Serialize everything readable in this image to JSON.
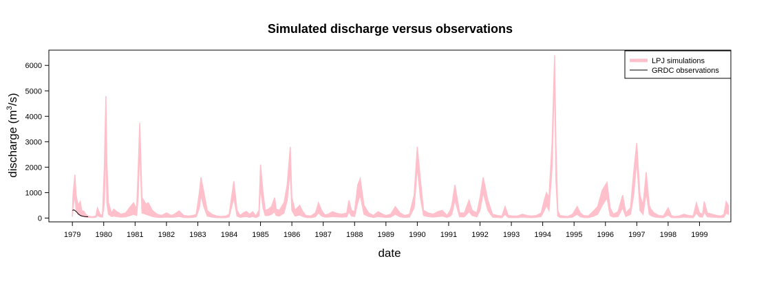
{
  "chart_data": {
    "type": "area",
    "title": "Simulated discharge versus observations",
    "xlabel": "date",
    "ylabel": {
      "prefix": "discharge (m",
      "superscript": "3",
      "suffix": "/s)"
    },
    "ylim": [
      -150,
      6600
    ],
    "xlim": [
      1978.25,
      2000.0
    ],
    "y_ticks": [
      0,
      1000,
      2000,
      3000,
      4000,
      5000,
      6000
    ],
    "x_ticks": [
      "1979",
      "1980",
      "1981",
      "1982",
      "1983",
      "1984",
      "1985",
      "1986",
      "1987",
      "1988",
      "1989",
      "1990",
      "1991",
      "1992",
      "1993",
      "1994",
      "1995",
      "1996",
      "1997",
      "1998",
      "1999"
    ],
    "legend_position": "top-right",
    "grid": false,
    "series": [
      {
        "name": "LPJ simulations",
        "color": "#ffc0cb",
        "kind": "band",
        "x": [
          1979.0,
          1979.02,
          1979.08,
          1979.12,
          1979.18,
          1979.25,
          1979.3,
          1979.38,
          1979.42,
          1979.5,
          1979.58,
          1979.65,
          1979.75,
          1979.8,
          1979.88,
          1979.96,
          1980.02,
          1980.07,
          1980.1,
          1980.15,
          1980.25,
          1980.32,
          1980.42,
          1980.55,
          1980.7,
          1980.85,
          1980.95,
          1981.05,
          1981.1,
          1981.15,
          1981.22,
          1981.35,
          1981.42,
          1981.55,
          1981.7,
          1981.85,
          1982.0,
          1982.15,
          1982.25,
          1982.4,
          1982.55,
          1982.7,
          1982.85,
          1982.95,
          1983.05,
          1983.1,
          1983.18,
          1983.3,
          1983.45,
          1983.6,
          1983.75,
          1983.9,
          1984.0,
          1984.15,
          1984.25,
          1984.35,
          1984.45,
          1984.55,
          1984.65,
          1984.75,
          1984.85,
          1984.95,
          1985.0,
          1985.08,
          1985.15,
          1985.25,
          1985.35,
          1985.45,
          1985.5,
          1985.6,
          1985.75,
          1985.85,
          1985.95,
          1986.0,
          1986.1,
          1986.25,
          1986.35,
          1986.45,
          1986.6,
          1986.75,
          1986.85,
          1986.95,
          1987.05,
          1987.15,
          1987.3,
          1987.45,
          1987.6,
          1987.75,
          1987.82,
          1987.9,
          1988.0,
          1988.1,
          1988.18,
          1988.3,
          1988.45,
          1988.6,
          1988.75,
          1988.9,
          1989.0,
          1989.15,
          1989.3,
          1989.45,
          1989.6,
          1989.75,
          1989.9,
          1990.0,
          1990.1,
          1990.2,
          1990.35,
          1990.5,
          1990.65,
          1990.8,
          1990.95,
          1991.05,
          1991.1,
          1991.2,
          1991.35,
          1991.5,
          1991.65,
          1991.75,
          1991.9,
          1992.0,
          1992.1,
          1992.25,
          1992.4,
          1992.55,
          1992.7,
          1992.8,
          1992.9,
          1993.05,
          1993.2,
          1993.35,
          1993.5,
          1993.65,
          1993.8,
          1993.95,
          1994.05,
          1994.12,
          1994.2,
          1994.3,
          1994.38,
          1994.42,
          1994.48,
          1994.55,
          1994.65,
          1994.8,
          1994.95,
          1995.1,
          1995.2,
          1995.3,
          1995.45,
          1995.6,
          1995.75,
          1995.9,
          1996.05,
          1996.15,
          1996.25,
          1996.4,
          1996.55,
          1996.65,
          1996.8,
          1996.9,
          1997.0,
          1997.1,
          1997.2,
          1997.3,
          1997.4,
          1997.45,
          1997.55,
          1997.7,
          1997.85,
          1998.0,
          1998.1,
          1998.2,
          1998.35,
          1998.5,
          1998.65,
          1998.8,
          1998.9,
          1999.0,
          1999.1,
          1999.15,
          1999.25,
          1999.4,
          1999.55,
          1999.7,
          1999.78,
          1999.85,
          1999.92
        ],
        "upper": [
          200,
          900,
          1700,
          900,
          500,
          650,
          300,
          250,
          150,
          80,
          60,
          50,
          80,
          400,
          150,
          100,
          2000,
          4800,
          2200,
          600,
          200,
          350,
          250,
          150,
          200,
          450,
          600,
          350,
          2000,
          3750,
          800,
          550,
          600,
          300,
          150,
          100,
          200,
          100,
          150,
          280,
          100,
          80,
          100,
          150,
          1000,
          1600,
          1100,
          300,
          150,
          80,
          60,
          80,
          150,
          1450,
          300,
          100,
          200,
          260,
          150,
          250,
          80,
          300,
          2100,
          1000,
          300,
          350,
          450,
          800,
          350,
          300,
          600,
          1300,
          2800,
          800,
          300,
          500,
          250,
          100,
          80,
          200,
          600,
          300,
          120,
          150,
          250,
          180,
          150,
          200,
          700,
          300,
          250,
          1300,
          1550,
          500,
          200,
          100,
          250,
          150,
          100,
          150,
          450,
          200,
          100,
          150,
          900,
          2800,
          1500,
          300,
          200,
          150,
          250,
          300,
          100,
          300,
          500,
          1300,
          200,
          200,
          700,
          300,
          200,
          800,
          1600,
          700,
          150,
          100,
          80,
          450,
          100,
          80,
          80,
          150,
          100,
          80,
          100,
          200,
          700,
          1000,
          800,
          3000,
          6400,
          3000,
          300,
          100,
          80,
          60,
          150,
          450,
          200,
          100,
          80,
          250,
          450,
          1100,
          1400,
          400,
          150,
          250,
          900,
          200,
          400,
          1800,
          2950,
          900,
          500,
          1800,
          500,
          350,
          200,
          100,
          80,
          400,
          100,
          60,
          80,
          150,
          100,
          80,
          600,
          200,
          150,
          650,
          200,
          150,
          100,
          80,
          150,
          650,
          500
        ],
        "lower": [
          50,
          400,
          900,
          300,
          150,
          100,
          80,
          60,
          40,
          30,
          25,
          20,
          30,
          100,
          50,
          40,
          600,
          3000,
          600,
          150,
          60,
          80,
          60,
          40,
          50,
          100,
          150,
          100,
          900,
          2800,
          200,
          150,
          120,
          60,
          30,
          25,
          40,
          30,
          40,
          60,
          25,
          20,
          30,
          50,
          400,
          900,
          500,
          80,
          40,
          20,
          15,
          20,
          50,
          800,
          80,
          30,
          50,
          60,
          30,
          60,
          20,
          80,
          1200,
          400,
          100,
          100,
          150,
          250,
          100,
          80,
          200,
          700,
          1900,
          300,
          80,
          120,
          60,
          25,
          20,
          50,
          200,
          80,
          40,
          40,
          60,
          50,
          40,
          50,
          250,
          80,
          60,
          600,
          900,
          150,
          60,
          25,
          60,
          40,
          25,
          40,
          150,
          50,
          25,
          40,
          400,
          2000,
          800,
          100,
          60,
          40,
          60,
          80,
          25,
          80,
          150,
          700,
          50,
          50,
          250,
          100,
          50,
          300,
          1000,
          300,
          40,
          25,
          20,
          150,
          25,
          20,
          20,
          40,
          25,
          20,
          30,
          60,
          300,
          500,
          300,
          2000,
          5800,
          1500,
          80,
          25,
          20,
          15,
          40,
          150,
          50,
          25,
          20,
          60,
          150,
          500,
          800,
          100,
          40,
          60,
          400,
          60,
          150,
          900,
          2300,
          300,
          150,
          1000,
          150,
          100,
          50,
          25,
          20,
          120,
          25,
          15,
          20,
          40,
          25,
          20,
          200,
          50,
          40,
          250,
          50,
          40,
          25,
          20,
          40,
          200,
          150
        ]
      },
      {
        "name": "GRDC observations",
        "color": "#000000",
        "kind": "line",
        "x": [
          1979.0,
          1979.05,
          1979.1,
          1979.15,
          1979.2,
          1979.25,
          1979.3,
          1979.35,
          1979.4,
          1979.45,
          1979.5
        ],
        "values": [
          300,
          320,
          280,
          220,
          150,
          110,
          80,
          70,
          60,
          55,
          50
        ]
      }
    ]
  }
}
